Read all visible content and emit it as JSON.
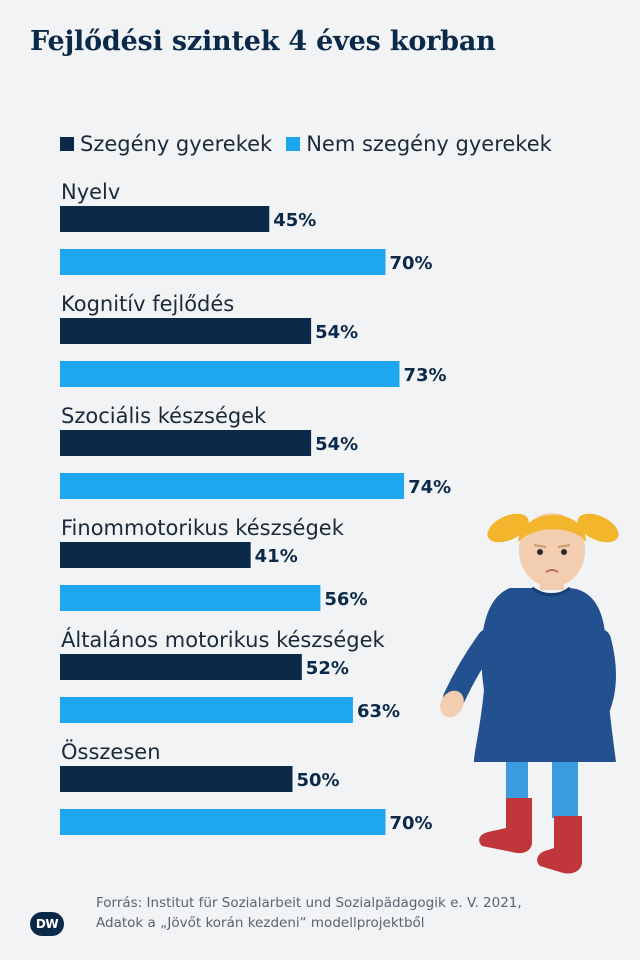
{
  "chart_data": {
    "type": "bar",
    "orientation": "horizontal",
    "title": "Fejlődési szintek 4 éves korban",
    "categories": [
      "Nyelv",
      "Kognitív fejlődés",
      "Szociális készségek",
      "Finommotorikus készségek",
      "Általános motorikus készségek",
      "Összesen"
    ],
    "series": [
      {
        "name": "Szegény gyerekek",
        "color": "#0b2a4a",
        "values": [
          45,
          54,
          54,
          41,
          52,
          50
        ],
        "labels": [
          "45%",
          "54%",
          "54%",
          "41%",
          "52%",
          "50%"
        ]
      },
      {
        "name": "Nem szegény gyerekek",
        "color": "#1fa6f0",
        "values": [
          70,
          73,
          74,
          56,
          63,
          70
        ],
        "labels": [
          "70%",
          "73%",
          "74%",
          "56%",
          "63%",
          "70%"
        ]
      }
    ],
    "xlim": [
      0,
      100
    ],
    "legend_position": "top-left",
    "grid": false
  },
  "footer": {
    "source_line1": "Forrás: Institut für Sozialarbeit und Sozialpädagogik e. V. 2021,",
    "source_line2": "Adatok a „Jövőt korán kezdeni“ modellprojektből",
    "logo_text": "DW"
  },
  "illustration": {
    "icon": "child-girl-icon"
  }
}
